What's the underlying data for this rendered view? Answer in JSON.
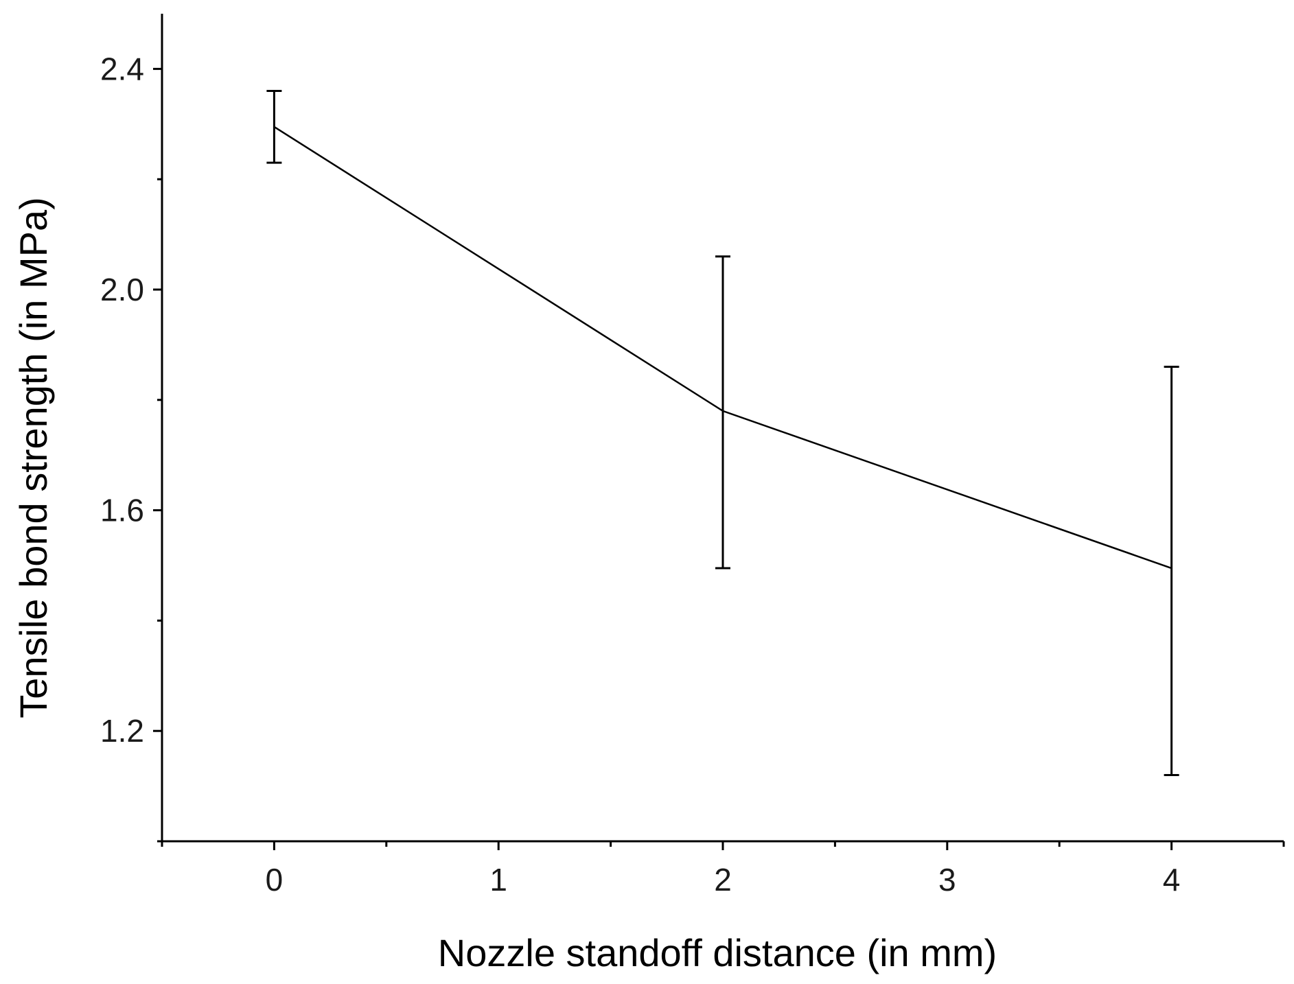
{
  "chart_data": {
    "type": "line",
    "title": "",
    "xlabel": "Nozzle standoff distance (in mm)",
    "ylabel": "Tensile bond strength (in MPa)",
    "xlim": [
      -0.5,
      4.5
    ],
    "ylim": [
      1.0,
      2.5
    ],
    "x_ticks": [
      0,
      1,
      2,
      3,
      4
    ],
    "x_tick_labels": [
      "0",
      "1",
      "2",
      "3",
      "4"
    ],
    "x_minor_ticks": [
      -0.5,
      0.5,
      1.5,
      2.5,
      3.5,
      4.5
    ],
    "y_ticks": [
      1.2,
      1.6,
      2.0,
      2.4
    ],
    "y_tick_labels": [
      "1.2",
      "1.6",
      "2.0",
      "2.4"
    ],
    "y_minor_ticks": [
      1.0,
      1.4,
      1.8,
      2.2
    ],
    "grid": false,
    "legend": "none",
    "series": [
      {
        "x": [
          0,
          2,
          4
        ],
        "y": [
          2.295,
          1.78,
          1.495
        ],
        "error_low": [
          2.23,
          1.495,
          1.12
        ],
        "error_high": [
          2.36,
          2.06,
          1.86
        ],
        "color": "#000000"
      }
    ]
  }
}
